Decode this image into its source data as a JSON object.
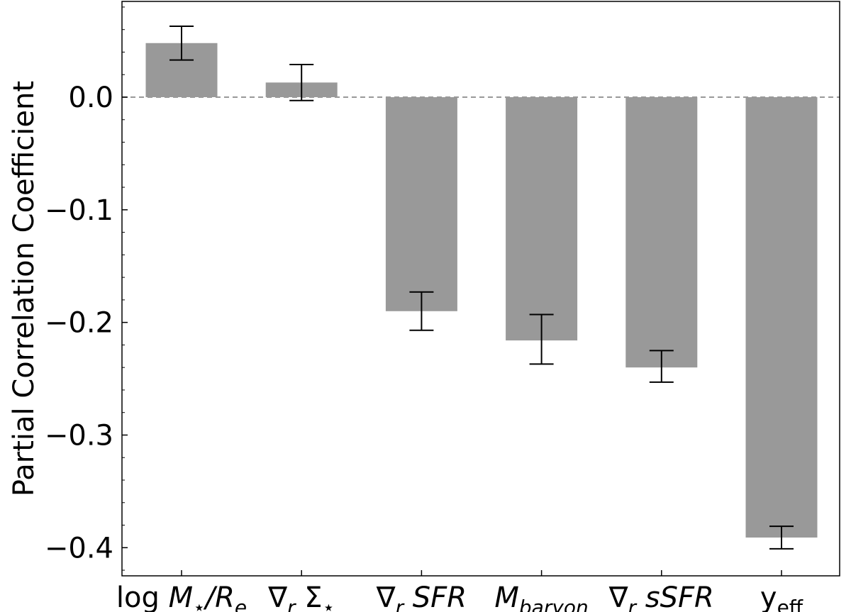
{
  "chart_data": {
    "type": "bar",
    "ylabel": "Partial Correlation Coefficient",
    "xlabel": "",
    "ylim": [
      -0.425,
      0.085
    ],
    "yticks": [
      {
        "value": 0.0,
        "label": "0.0"
      },
      {
        "value": -0.1,
        "label": "−0.1"
      },
      {
        "value": -0.2,
        "label": "−0.2"
      },
      {
        "value": -0.3,
        "label": "−0.3"
      },
      {
        "value": -0.4,
        "label": "−0.4"
      }
    ],
    "categories": [
      "log M⋆/Re",
      "∇r Σ⋆",
      "∇r SFR",
      "Mbaryon",
      "∇r sSFR",
      "yeff"
    ],
    "category_labels": [
      {
        "parts": [
          {
            "t": "log ",
            "s": "n"
          },
          {
            "t": "M",
            "s": "i"
          },
          {
            "t": "⋆",
            "s": "sub"
          },
          {
            "t": "/R",
            "s": "i"
          },
          {
            "t": "e",
            "s": "isub"
          }
        ]
      },
      {
        "parts": [
          {
            "t": "∇",
            "s": "n"
          },
          {
            "t": "r",
            "s": "isub"
          },
          {
            "t": " Σ",
            "s": "n"
          },
          {
            "t": "⋆",
            "s": "sub"
          }
        ]
      },
      {
        "parts": [
          {
            "t": "∇",
            "s": "n"
          },
          {
            "t": "r",
            "s": "isub"
          },
          {
            "t": " SFR",
            "s": "i"
          }
        ]
      },
      {
        "parts": [
          {
            "t": "M",
            "s": "i"
          },
          {
            "t": "baryon",
            "s": "isub"
          }
        ]
      },
      {
        "parts": [
          {
            "t": "∇",
            "s": "n"
          },
          {
            "t": "r",
            "s": "isub"
          },
          {
            "t": " sSFR",
            "s": "i"
          }
        ]
      },
      {
        "parts": [
          {
            "t": "y",
            "s": "n"
          },
          {
            "t": "eff",
            "s": "sub"
          }
        ]
      }
    ],
    "values": [
      0.048,
      0.013,
      -0.19,
      -0.216,
      -0.24,
      -0.391
    ],
    "errors": [
      [
        0.033,
        0.063
      ],
      [
        -0.003,
        0.029
      ],
      [
        -0.207,
        -0.173
      ],
      [
        -0.237,
        -0.193
      ],
      [
        -0.253,
        -0.225
      ],
      [
        -0.401,
        -0.381
      ]
    ],
    "bar_color": "#999999",
    "zero_line": {
      "value": 0.0,
      "style": "dashed",
      "color": "#999999"
    },
    "grid": false,
    "legend": "none"
  }
}
